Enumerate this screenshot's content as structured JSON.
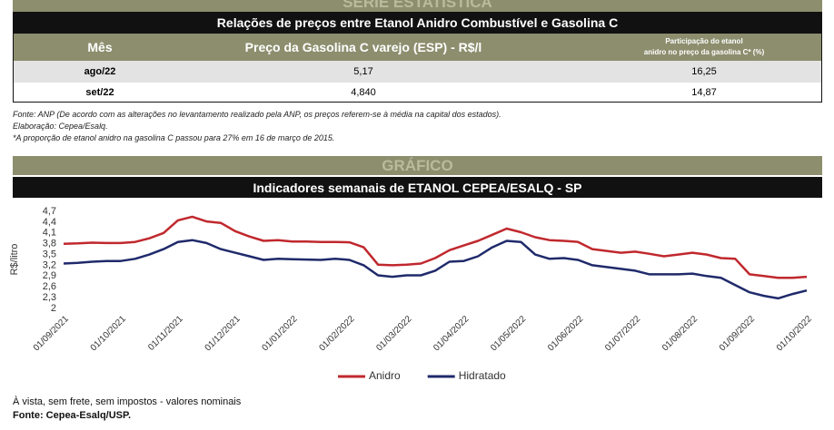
{
  "banner": "SÉRIE ESTATÍSTICA",
  "table": {
    "title": "Relações de preços entre Etanol Anidro Combustível e Gasolina C",
    "columns": [
      "Mês",
      "Preço da Gasolina C varejo (ESP) - R$/l",
      [
        "Participação do etanol",
        "anidro no preço da gasolina C* (%)"
      ]
    ],
    "rows": [
      [
        "ago/22",
        "5,17",
        "16,25"
      ],
      [
        "set/22",
        "4,840",
        "14,87"
      ]
    ]
  },
  "notes": [
    "Fonte: ANP (De acordo com as alterações no levantamento realizado pela ANP, os preços referem-se à média na capital dos estados).",
    "Elaboração: Cepea/Esalq.",
    "*A proporção de etanol anidro na gasolina C passou para 27% em 16 de março de 2015."
  ],
  "chart_section": "GRÁFICO",
  "chart_data": {
    "type": "line",
    "title": "Indicadores semanais de ETANOL CEPEA/ESALQ - SP",
    "ylabel": "R$/litro",
    "categories": [
      "01/09/2021",
      null,
      null,
      null,
      "01/10/2021",
      null,
      null,
      null,
      "01/11/2021",
      null,
      null,
      null,
      "01/12/2021",
      null,
      null,
      null,
      "01/01/2022",
      null,
      null,
      null,
      "01/02/2022",
      null,
      null,
      null,
      "01/03/2022",
      null,
      null,
      null,
      "01/04/2022",
      null,
      null,
      null,
      "01/05/2022",
      null,
      null,
      null,
      "01/06/2022",
      null,
      null,
      null,
      "01/07/2022",
      null,
      null,
      null,
      "01/08/2022",
      null,
      null,
      null,
      "01/09/2022",
      null,
      null,
      null,
      "01/10/2022"
    ],
    "ylim": [
      2,
      4.7
    ],
    "yticks": [
      2,
      {
        "value": 2.3,
        "label": "2,3"
      },
      {
        "value": 2.6,
        "label": "2,6"
      },
      {
        "value": 2.9,
        "label": "2,9"
      },
      {
        "value": 3.2,
        "label": "3,2"
      },
      {
        "value": 3.5,
        "label": "3,5"
      },
      {
        "value": 3.8,
        "label": "3,8"
      },
      {
        "value": 4.1,
        "label": "4,1"
      },
      {
        "value": 4.4,
        "label": "4,4"
      },
      {
        "value": 4.7,
        "label": "4,7"
      }
    ],
    "grid": false,
    "legend": "bottom",
    "series": [
      {
        "name": "Anidro",
        "color": "#c0282d",
        "values": [
          3.8,
          3.81,
          3.83,
          3.82,
          3.82,
          3.85,
          3.95,
          4.1,
          4.45,
          4.55,
          4.42,
          4.38,
          4.15,
          4.0,
          3.88,
          3.9,
          3.86,
          3.86,
          3.85,
          3.85,
          3.84,
          3.7,
          3.22,
          3.2,
          3.22,
          3.25,
          3.4,
          3.62,
          3.75,
          3.88,
          4.05,
          4.22,
          4.12,
          3.98,
          3.9,
          3.88,
          3.85,
          3.65,
          3.6,
          3.55,
          3.58,
          3.52,
          3.45,
          3.5,
          3.55,
          3.5,
          3.4,
          3.38,
          2.95,
          2.9,
          2.85,
          2.85,
          2.88
        ]
      },
      {
        "name": "Hidratado",
        "color": "#1f2a6b",
        "values": [
          3.25,
          3.27,
          3.3,
          3.32,
          3.32,
          3.38,
          3.5,
          3.65,
          3.85,
          3.9,
          3.82,
          3.65,
          3.55,
          3.45,
          3.35,
          3.38,
          3.37,
          3.36,
          3.35,
          3.38,
          3.35,
          3.2,
          2.92,
          2.88,
          2.92,
          2.92,
          3.05,
          3.3,
          3.32,
          3.45,
          3.7,
          3.88,
          3.85,
          3.5,
          3.38,
          3.4,
          3.35,
          3.2,
          3.15,
          3.1,
          3.05,
          2.95,
          2.95,
          2.95,
          2.97,
          2.9,
          2.85,
          2.65,
          2.45,
          2.35,
          2.28,
          2.4,
          2.5
        ]
      }
    ]
  },
  "footer": [
    "À vista, sem frete, sem impostos - valores nominais",
    "Fonte: Cepea-Esalq/USP."
  ]
}
